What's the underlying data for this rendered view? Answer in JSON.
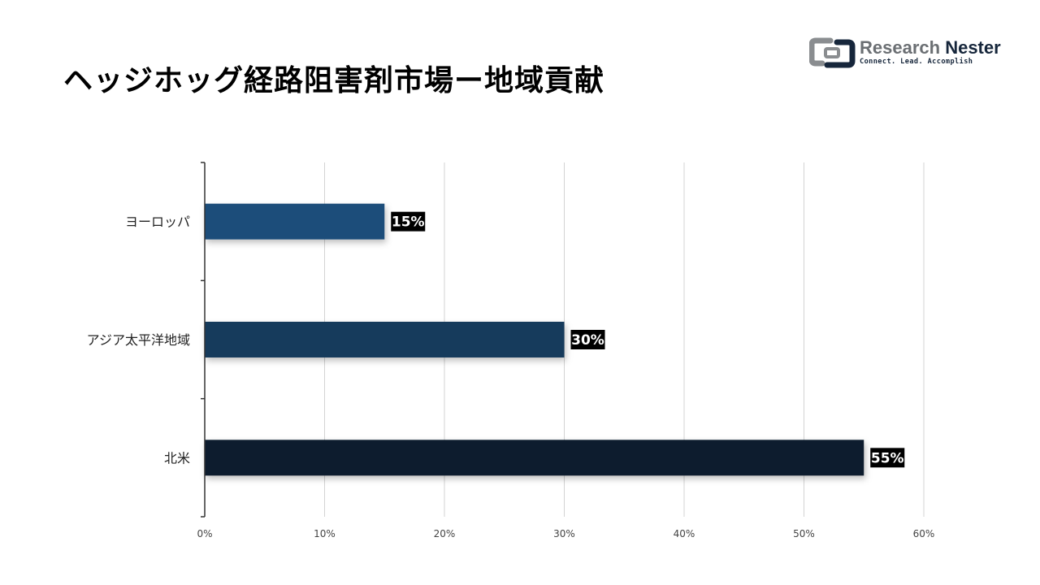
{
  "title": "ヘッジホッグ経路阻害剤市場ー地域貢献",
  "logo": {
    "name_part1": "Research",
    "name_part2": "Nester",
    "tagline": "Connect. Lead. Accomplish",
    "icon": "research-nester-logo-icon"
  },
  "chart_data": {
    "type": "bar",
    "orientation": "horizontal",
    "categories": [
      "ヨーロッパ",
      "アジア太平洋地域",
      "北米"
    ],
    "values": [
      15,
      30,
      55
    ],
    "value_labels": [
      "15%",
      "30%",
      "55%"
    ],
    "bar_colors": [
      "#1f4e7a",
      "#163a5c",
      "#0f1e2d"
    ],
    "xlim": [
      0,
      60
    ],
    "xticks": [
      0,
      10,
      20,
      30,
      40,
      50,
      60
    ],
    "xtick_labels": [
      "0%",
      "10%",
      "20%",
      "30%",
      "40%",
      "50%",
      "60%"
    ],
    "grid": true,
    "value_label_bg": "#000000"
  }
}
